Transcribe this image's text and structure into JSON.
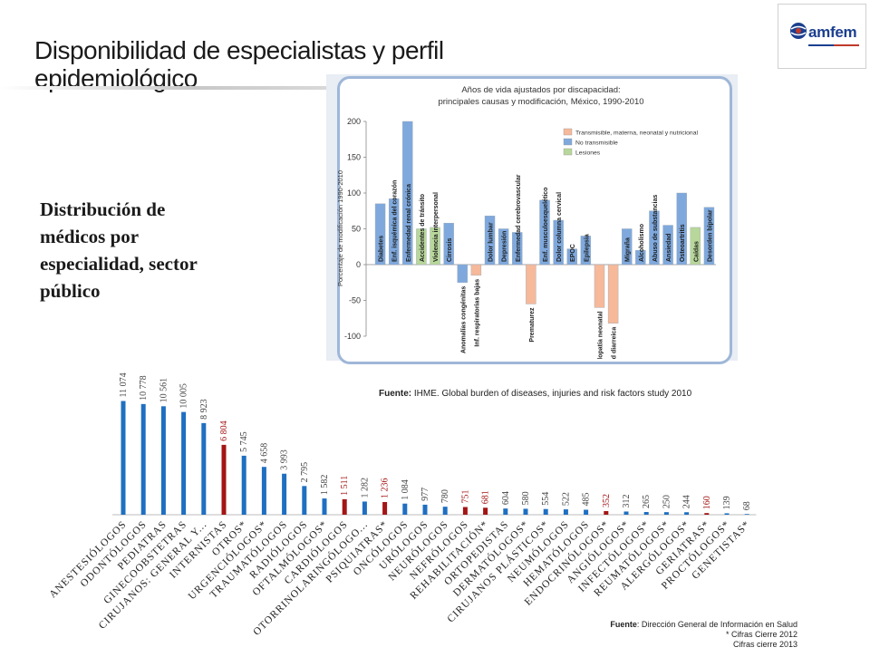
{
  "slide": {
    "title": "Disponibilidad de especialistas y perfil epidemiológico",
    "subheading": "Distribución de médicos por especialidad, sector público",
    "logo_text": "amfem",
    "ihme_source_label": "Fuente:",
    "ihme_source_text": " IHME. Global burden of diseases, injuries and risk factors study 2010",
    "source_label": "Fuente",
    "source_text": ": Dirección General de Información en Salud",
    "note_1": "* Cifras Cierre 2012",
    "note_2": "Cifras cierre 2013",
    "colors": {
      "blue": "#1f6fc1",
      "red": "#a31515",
      "inset_blue": "#7fa9dd",
      "inset_orange": "#f6b99a",
      "inset_green": "#b8d79a"
    }
  },
  "chart_data": [
    {
      "type": "bar",
      "title": "",
      "categories": [
        "ANESTESIÓLOGOS",
        "ODONTÓLOGOS",
        "PEDIATRAS",
        "GINECOOBSTETRAS",
        "CIRUJANOS: GENERAL Y...",
        "INTERNISTAS",
        "OTROS*",
        "URGENCIÓLOGOS*",
        "TRAUMATÓLOGOS",
        "RADIÓLOGOS",
        "OFTALMÓLOGOS*",
        "CARDIÓLOGOS",
        "OTORRINOLARINGÓLOGO...",
        "PSIQUIATRAS*",
        "ONCÓLOGOS",
        "URÓLOGOS",
        "NEURÓLOGOS",
        "NEFRÓLOGOS",
        "REHABILITACIÓN*",
        "ORTOPEDISTAS",
        "DERMATÓLOGOS*",
        "CIRUJANOS PLÁSTICOS*",
        "NEUMÓLOGOS",
        "HEMATÓLOGOS",
        "ENDOCRINÓLOGOS*",
        "ANGIÓLOGOS*",
        "INFECTÓLOGOS*",
        "REUMATÓLOGOS*",
        "ALERGÓLOGOS*",
        "GERIATRAS*",
        "PROCTÓLOGOS*",
        "GENETISTAS*"
      ],
      "values": [
        11074,
        10778,
        10561,
        10005,
        8923,
        6804,
        5745,
        4658,
        3993,
        2795,
        1582,
        1511,
        1282,
        1236,
        1084,
        977,
        780,
        751,
        681,
        604,
        580,
        554,
        522,
        485,
        352,
        312,
        265,
        250,
        244,
        160,
        139,
        68
      ],
      "value_labels": [
        "11 074",
        "10 778",
        "10 561",
        "10 005",
        "8 923",
        "6 804",
        "5 745",
        "4 658",
        "3 993",
        "2 795",
        "1 582",
        "1 511",
        "1 282",
        "1 236",
        "1 084",
        "977",
        "780",
        "751",
        "681",
        "604",
        "580",
        "554",
        "522",
        "485",
        "352",
        "312",
        "265",
        "250",
        "244",
        "160",
        "139",
        "68"
      ],
      "highlighted": [
        false,
        false,
        false,
        false,
        false,
        true,
        false,
        false,
        false,
        false,
        false,
        true,
        false,
        true,
        false,
        false,
        false,
        true,
        true,
        false,
        false,
        false,
        false,
        false,
        true,
        false,
        false,
        false,
        false,
        true,
        false,
        false
      ],
      "ylim": [
        0,
        12000
      ],
      "grid": false
    },
    {
      "type": "bar",
      "title": "Años de vida ajustados por discapacidad: principales causas y modificación, México, 1990-2010",
      "ylabel": "Porcentaje de modificación 1990-2010",
      "ylim": [
        -100,
        200
      ],
      "yticks": [
        -100,
        -50,
        0,
        50,
        100,
        150,
        200
      ],
      "legend_position": "top-right",
      "legend": [
        "Transmisible, materna, neonatal y nutricional",
        "No transmisible",
        "Lesiones"
      ],
      "categories": [
        "Diabetes",
        "Enf. isquémica del corazón",
        "Enfermedad renal crónica",
        "Accidentes de tránsito",
        "Violencia interpersonal",
        "Cirrosis",
        "Anomalías congénitas",
        "Inf. respiratorias bajas",
        "Dolor lumbar",
        "Depresión",
        "Enfermedad cerebrovascular",
        "Prematurez",
        "Enf. musculoesquelético",
        "Dolor columna cervical",
        "EPOC",
        "Epilepsia",
        "Encefalopatía neonatal",
        "Enfermedad diarreica",
        "Migraña",
        "Alcoholismo",
        "Abuso de substancias",
        "Ansiedad",
        "Osteoartritis",
        "Caídas",
        "Desorden bipolar"
      ],
      "values": [
        85,
        92,
        200,
        50,
        52,
        58,
        -25,
        -15,
        68,
        50,
        45,
        -55,
        90,
        62,
        22,
        40,
        -60,
        -82,
        50,
        20,
        75,
        55,
        100,
        52,
        80
      ],
      "groups": [
        2,
        2,
        2,
        3,
        3,
        2,
        2,
        1,
        2,
        2,
        2,
        1,
        2,
        2,
        2,
        2,
        1,
        1,
        2,
        2,
        2,
        2,
        2,
        3,
        2
      ]
    }
  ]
}
